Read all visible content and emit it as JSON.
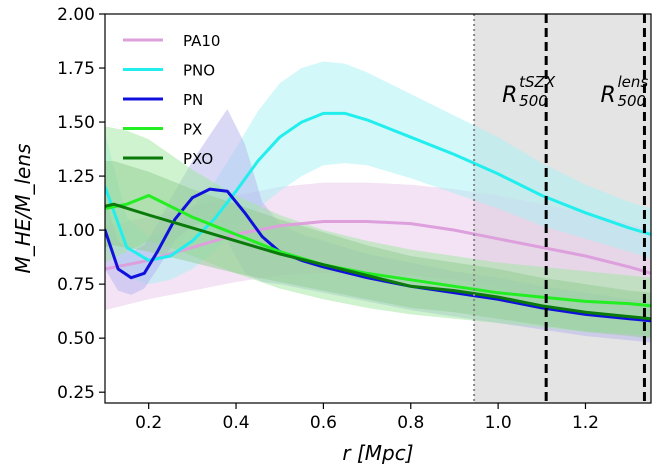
{
  "chart_data": {
    "type": "line",
    "xlabel": "r [Mpc]",
    "ylabel": "M_HE/M_lens",
    "xlim": [
      0.1,
      1.35
    ],
    "ylim": [
      0.2,
      2.0
    ],
    "xticks": [
      "0.2",
      "0.4",
      "0.6",
      "0.8",
      "1.0",
      "1.2"
    ],
    "yticks": [
      "0.25",
      "0.50",
      "0.75",
      "1.00",
      "1.25",
      "1.50",
      "1.75",
      "2.00"
    ],
    "grid": false,
    "legend_position": "top-left",
    "shaded_region": {
      "x_start": 0.945,
      "x_end": 1.35,
      "color": "#e4e4e4"
    },
    "vlines": [
      {
        "x": 0.945,
        "style": "dotted",
        "color": "#888888"
      },
      {
        "x": 1.11,
        "style": "dashed",
        "color": "#000000",
        "label_base": "R",
        "label_sub": "500",
        "label_sup": "tSZX"
      },
      {
        "x": 1.335,
        "style": "dashed",
        "color": "#000000",
        "label_base": "R",
        "label_sub": "500",
        "label_sup": "lens"
      }
    ],
    "series": [
      {
        "name": "PA10",
        "color": "#dda0dd",
        "band_color": "#e8c8ec",
        "x": [
          0.1,
          0.2,
          0.3,
          0.4,
          0.5,
          0.6,
          0.7,
          0.8,
          0.9,
          1.0,
          1.1,
          1.2,
          1.3,
          1.35
        ],
        "y": [
          0.82,
          0.86,
          0.92,
          0.98,
          1.02,
          1.04,
          1.04,
          1.03,
          1.0,
          0.96,
          0.92,
          0.88,
          0.83,
          0.8
        ],
        "lower": [
          0.63,
          0.68,
          0.72,
          0.76,
          0.79,
          0.8,
          0.8,
          0.79,
          0.77,
          0.74,
          0.7,
          0.66,
          0.63,
          0.61
        ],
        "upper": [
          1.02,
          1.06,
          1.11,
          1.16,
          1.2,
          1.22,
          1.22,
          1.21,
          1.19,
          1.16,
          1.12,
          1.08,
          1.03,
          1.0
        ]
      },
      {
        "name": "PNO",
        "color": "#22eeee",
        "band_color": "#a8f2f4",
        "x": [
          0.1,
          0.15,
          0.2,
          0.25,
          0.3,
          0.35,
          0.4,
          0.45,
          0.5,
          0.55,
          0.6,
          0.65,
          0.7,
          0.8,
          0.9,
          1.0,
          1.1,
          1.2,
          1.3,
          1.35
        ],
        "y": [
          1.2,
          0.92,
          0.86,
          0.88,
          0.95,
          1.05,
          1.18,
          1.32,
          1.43,
          1.5,
          1.54,
          1.54,
          1.51,
          1.43,
          1.35,
          1.26,
          1.16,
          1.08,
          1.01,
          0.98
        ],
        "lower": [
          0.95,
          0.78,
          0.75,
          0.77,
          0.82,
          0.9,
          1.0,
          1.1,
          1.18,
          1.25,
          1.3,
          1.31,
          1.3,
          1.24,
          1.17,
          1.1,
          1.02,
          0.96,
          0.9,
          0.87
        ],
        "upper": [
          1.45,
          1.06,
          0.97,
          1.0,
          1.1,
          1.22,
          1.38,
          1.55,
          1.68,
          1.75,
          1.78,
          1.77,
          1.73,
          1.63,
          1.53,
          1.43,
          1.31,
          1.21,
          1.13,
          1.1
        ]
      },
      {
        "name": "PN",
        "color": "#1010dd",
        "band_color": "#b4b4ee",
        "x": [
          0.1,
          0.13,
          0.16,
          0.19,
          0.22,
          0.26,
          0.3,
          0.34,
          0.38,
          0.42,
          0.46,
          0.5,
          0.55,
          0.6,
          0.7,
          0.8,
          0.9,
          1.0,
          1.1,
          1.2,
          1.3,
          1.35
        ],
        "y": [
          1.0,
          0.82,
          0.78,
          0.8,
          0.9,
          1.05,
          1.15,
          1.19,
          1.18,
          1.08,
          0.97,
          0.9,
          0.86,
          0.83,
          0.78,
          0.74,
          0.71,
          0.68,
          0.64,
          0.61,
          0.59,
          0.58
        ],
        "lower": [
          0.82,
          0.72,
          0.7,
          0.73,
          0.82,
          0.95,
          1.02,
          1.04,
          0.95,
          0.8,
          0.76,
          0.75,
          0.73,
          0.71,
          0.67,
          0.63,
          0.6,
          0.57,
          0.54,
          0.51,
          0.49,
          0.48
        ],
        "upper": [
          1.15,
          0.95,
          0.9,
          0.93,
          1.03,
          1.18,
          1.32,
          1.44,
          1.56,
          1.4,
          1.13,
          1.03,
          0.98,
          0.95,
          0.89,
          0.85,
          0.81,
          0.78,
          0.74,
          0.71,
          0.68,
          0.67
        ]
      },
      {
        "name": "PX",
        "color": "#22ee22",
        "band_color": "#9ee89e",
        "x": [
          0.1,
          0.15,
          0.2,
          0.25,
          0.3,
          0.35,
          0.4,
          0.5,
          0.6,
          0.7,
          0.8,
          0.9,
          1.0,
          1.1,
          1.2,
          1.3,
          1.35
        ],
        "y": [
          1.1,
          1.12,
          1.16,
          1.11,
          1.06,
          1.02,
          0.98,
          0.9,
          0.84,
          0.8,
          0.77,
          0.74,
          0.71,
          0.69,
          0.67,
          0.66,
          0.65
        ],
        "lower": [
          0.85,
          0.9,
          0.95,
          0.92,
          0.88,
          0.84,
          0.8,
          0.73,
          0.68,
          0.64,
          0.61,
          0.59,
          0.57,
          0.55,
          0.53,
          0.52,
          0.51
        ],
        "upper": [
          1.48,
          1.46,
          1.42,
          1.35,
          1.28,
          1.22,
          1.16,
          1.07,
          1.0,
          0.95,
          0.91,
          0.88,
          0.85,
          0.83,
          0.81,
          0.79,
          0.78
        ]
      },
      {
        "name": "PXO",
        "color": "#0a7a0a",
        "band_color": "#92cc92",
        "x": [
          0.1,
          0.12,
          0.2,
          0.3,
          0.4,
          0.5,
          0.6,
          0.7,
          0.8,
          0.9,
          1.0,
          1.1,
          1.2,
          1.3,
          1.35
        ],
        "y": [
          1.11,
          1.12,
          1.07,
          1.01,
          0.95,
          0.89,
          0.84,
          0.79,
          0.74,
          0.72,
          0.69,
          0.65,
          0.62,
          0.6,
          0.59
        ],
        "lower": [
          0.92,
          0.93,
          0.9,
          0.85,
          0.8,
          0.76,
          0.72,
          0.68,
          0.64,
          0.62,
          0.59,
          0.56,
          0.53,
          0.51,
          0.5
        ],
        "upper": [
          1.32,
          1.32,
          1.27,
          1.19,
          1.12,
          1.05,
          0.99,
          0.93,
          0.88,
          0.85,
          0.82,
          0.78,
          0.75,
          0.72,
          0.71
        ]
      }
    ]
  }
}
